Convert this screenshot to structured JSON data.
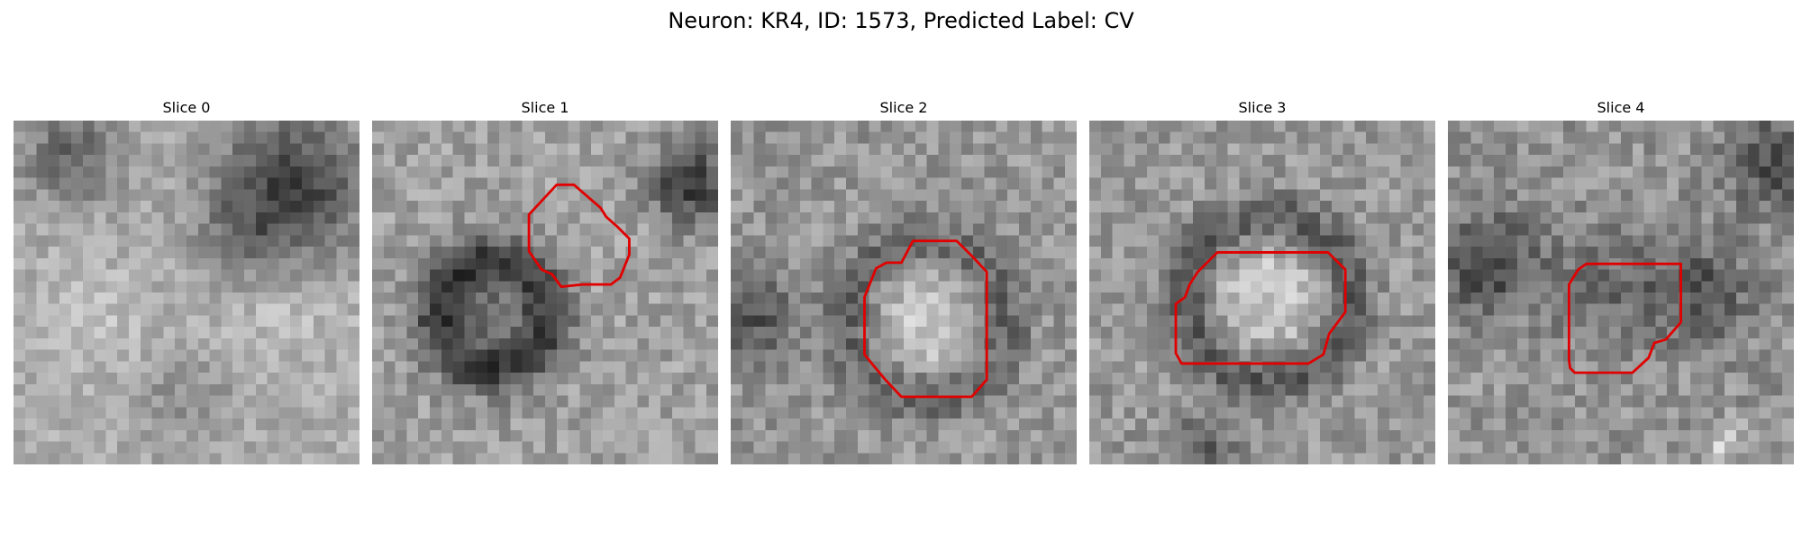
{
  "figure": {
    "title": "Neuron: KR4, ID: 1573, Predicted Label: CV",
    "roi_color": "#e00000",
    "colormap": "gray"
  },
  "panels": [
    {
      "title": "Slice 0",
      "has_roi": false
    },
    {
      "title": "Slice 1",
      "has_roi": true
    },
    {
      "title": "Slice 2",
      "has_roi": true
    },
    {
      "title": "Slice 3",
      "has_roi": true
    },
    {
      "title": "Slice 4",
      "has_roi": true
    }
  ]
}
